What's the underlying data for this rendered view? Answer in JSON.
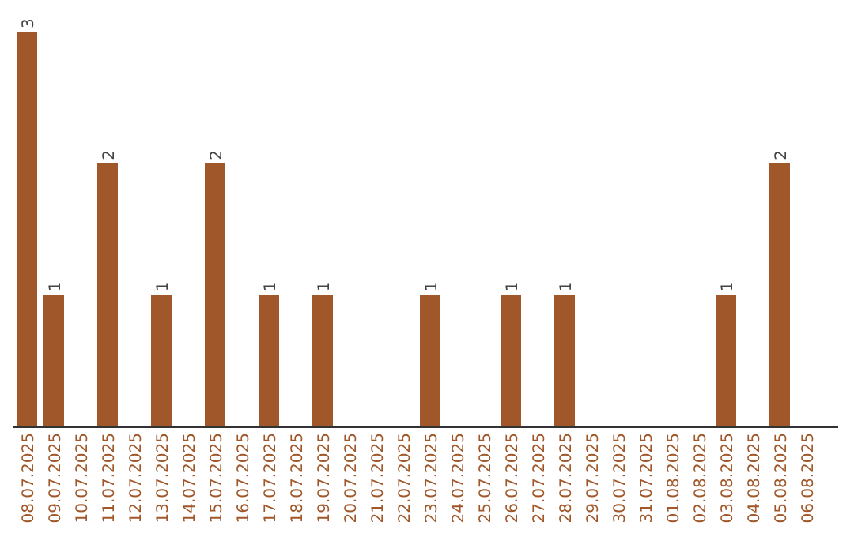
{
  "chart_data": {
    "type": "bar",
    "categories": [
      "08.07.2025",
      "09.07.2025",
      "10.07.2025",
      "11.07.2025",
      "12.07.2025",
      "13.07.2025",
      "14.07.2025",
      "15.07.2025",
      "16.07.2025",
      "17.07.2025",
      "18.07.2025",
      "19.07.2025",
      "20.07.2025",
      "21.07.2025",
      "22.07.2025",
      "23.07.2025",
      "24.07.2025",
      "25.07.2025",
      "26.07.2025",
      "27.07.2025",
      "28.07.2025",
      "29.07.2025",
      "30.07.2025",
      "31.07.2025",
      "01.08.2025",
      "02.08.2025",
      "03.08.2025",
      "04.08.2025",
      "05.08.2025",
      "06.08.2025"
    ],
    "values": [
      3,
      1,
      0,
      2,
      0,
      1,
      0,
      2,
      0,
      1,
      0,
      1,
      0,
      0,
      0,
      1,
      0,
      0,
      1,
      0,
      1,
      0,
      0,
      0,
      0,
      0,
      1,
      0,
      2,
      0
    ],
    "value_labels": [
      "3",
      "1",
      null,
      "2",
      null,
      "1",
      null,
      "2",
      null,
      "1",
      null,
      "1",
      null,
      null,
      null,
      "1",
      null,
      null,
      "1",
      null,
      "1",
      null,
      null,
      null,
      null,
      null,
      "1",
      null,
      "2",
      null
    ],
    "color": "#a0582a",
    "tick_labels": "x"
  }
}
